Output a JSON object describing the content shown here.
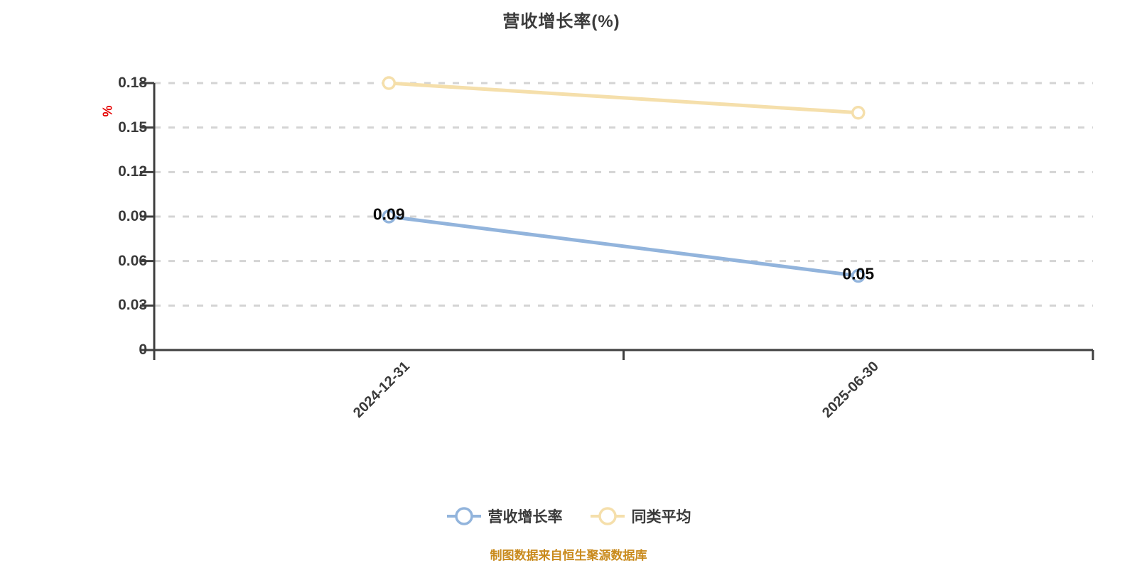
{
  "title": "营收增长率(%)",
  "y_axis_unit": "%",
  "source_note": "制图数据来自恒生聚源数据库",
  "colors": {
    "series_revenue_growth": "#92b4dc",
    "series_category_average": "#f5dfab",
    "axis_line": "#3f3f3f",
    "gridline": "#d4d4d4",
    "y_unit_label": "#e60000",
    "source_note": "#c98a1c",
    "text": "#3a3a3a",
    "point_label": "#0a0a0a"
  },
  "chart_data": {
    "type": "line",
    "title": "营收增长率(%)",
    "categories": [
      "2024-12-31",
      "2025-06-30"
    ],
    "series": [
      {
        "name": "营收增长率",
        "color": "#92b4dc",
        "values": [
          0.09,
          0.05
        ],
        "point_labels": [
          "0.09",
          "0.05"
        ]
      },
      {
        "name": "同类平均",
        "color": "#f5dfab",
        "values": [
          0.18,
          0.16
        ],
        "point_labels": [
          "",
          ""
        ]
      }
    ],
    "ylim": [
      0,
      0.18
    ],
    "yticks": [
      0,
      0.03,
      0.06,
      0.09,
      0.12,
      0.15,
      0.18
    ],
    "ytick_labels": [
      "0",
      "0.03",
      "0.06",
      "0.09",
      "0.12",
      "0.15",
      "0.18"
    ],
    "ylabel": "%",
    "xlabel": "",
    "grid": "horizontal dashed gridlines",
    "x_label_rotation": -45,
    "legend_position": "bottom",
    "legend": [
      "营收增长率",
      "同类平均"
    ]
  }
}
